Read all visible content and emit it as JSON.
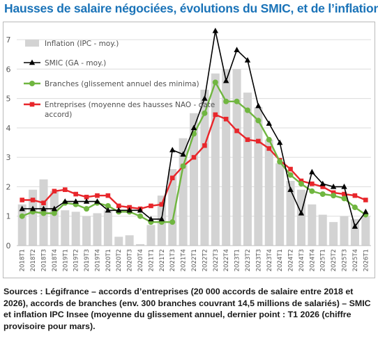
{
  "page": {
    "title": "Hausses de salaire négociées, évolutions du SMIC, et de l’inflation",
    "source": "Sources : Légifrance – accords d’entreprises (20 000 accords de salaire entre 2018 et 2026), accords de branches (env. 300 branches couvrant 14,5 millions de salariés) – SMIC et inflation IPC Insee (moyenne du glissement annuel, dernier point : T1 2026 (chiffre provisoire pour mars)."
  },
  "colors": {
    "title": "#1a73b8",
    "inflation": "#d3d3d3",
    "smic": "#000000",
    "branches": "#70b640",
    "entreprises": "#e8262b",
    "grid": "#dcdcdc"
  },
  "chart_data": {
    "type": "bar+line",
    "title": "",
    "xlabel": "",
    "ylabel": "",
    "ylim": [
      0,
      7
    ],
    "yticks": [
      "0",
      "1",
      "2",
      "3",
      "4",
      "5",
      "6",
      "7"
    ],
    "grid": true,
    "legend_position": "top-left",
    "categories": [
      "2018T1",
      "2018T2",
      "2018T3",
      "2018T4",
      "2019T1",
      "2019T2",
      "2019T3",
      "2019T4",
      "2020T1",
      "2020T2",
      "2020T3",
      "2020T4",
      "2021T1",
      "2021T2",
      "2021T3",
      "2021T4",
      "2022T1",
      "2022T2",
      "2022T3",
      "2022T4",
      "2023T1",
      "2023T2",
      "2023T3",
      "2023T4",
      "2024T1",
      "2024T2",
      "2024T3",
      "2024T4",
      "2025T1",
      "2025T2",
      "2025T3",
      "2025T4",
      "2026T1"
    ],
    "series": [
      {
        "name": "Inflation (IPC - moy.)",
        "kind": "bar",
        "color": "#d3d3d3",
        "values": [
          1.4,
          1.9,
          2.25,
          1.85,
          1.2,
          1.15,
          1.0,
          1.1,
          1.2,
          0.3,
          0.35,
          0.05,
          0.7,
          1.7,
          2.6,
          3.65,
          4.5,
          5.3,
          5.85,
          6.0,
          6.0,
          5.2,
          4.7,
          3.6,
          2.8,
          2.2,
          1.9,
          1.4,
          1.05,
          0.8,
          1.0,
          0.9,
          1.0
        ]
      },
      {
        "name": "SMIC (GA - moy.)",
        "kind": "line",
        "marker": "triangle",
        "color": "#000000",
        "values": [
          1.25,
          1.25,
          1.25,
          1.25,
          1.5,
          1.5,
          1.5,
          1.5,
          1.2,
          1.2,
          1.2,
          1.2,
          0.9,
          0.9,
          3.25,
          3.1,
          4.0,
          5.0,
          7.3,
          5.6,
          6.65,
          6.3,
          4.75,
          4.15,
          3.5,
          1.9,
          1.1,
          2.5,
          2.1,
          2.0,
          2.0,
          0.65,
          1.15
        ]
      },
      {
        "name": "Branches (glissement annuel des minima)",
        "kind": "line",
        "marker": "circle",
        "color": "#70b640",
        "values": [
          1.0,
          1.15,
          1.1,
          1.1,
          1.45,
          1.4,
          1.25,
          1.45,
          1.35,
          1.15,
          1.15,
          1.0,
          0.8,
          0.8,
          0.8,
          2.7,
          3.8,
          4.5,
          5.55,
          4.9,
          4.9,
          4.6,
          4.25,
          3.6,
          2.85,
          2.4,
          2.1,
          1.85,
          1.75,
          1.7,
          1.6,
          1.3,
          1.05
        ]
      },
      {
        "name": "Entreprises (moyenne des hausses NAO - date accord)",
        "kind": "line",
        "marker": "square",
        "color": "#e8262b",
        "values": [
          1.55,
          1.55,
          1.45,
          1.85,
          1.9,
          1.75,
          1.65,
          1.7,
          1.7,
          1.35,
          1.3,
          1.25,
          1.35,
          1.4,
          2.3,
          2.7,
          3.0,
          3.4,
          4.45,
          4.3,
          3.9,
          3.6,
          3.55,
          3.3,
          2.9,
          2.6,
          2.2,
          2.1,
          2.0,
          1.8,
          1.75,
          1.7,
          1.55
        ]
      }
    ]
  }
}
